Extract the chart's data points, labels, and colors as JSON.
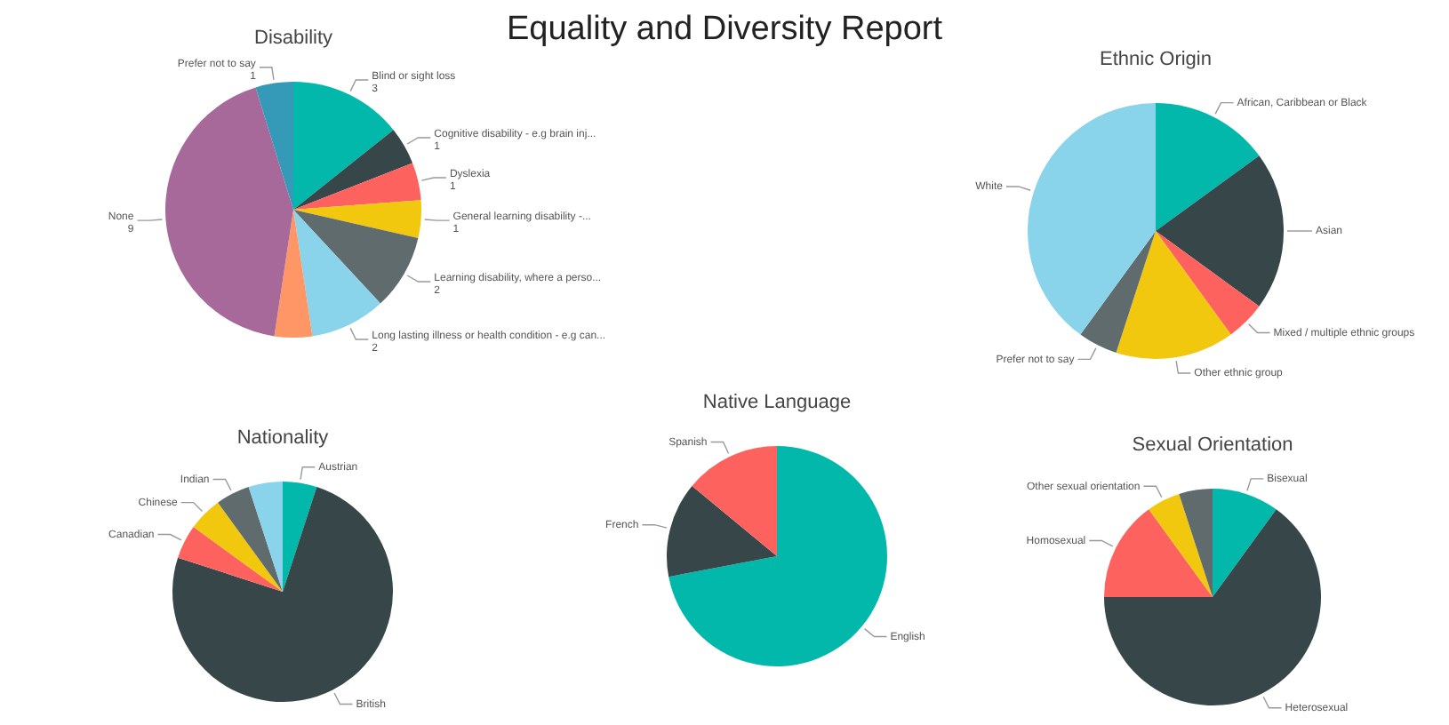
{
  "chart_data": [
    {
      "type": "other",
      "title": "Equality and Diversity Report"
    },
    {
      "type": "pie",
      "title": "Disability",
      "categories": [
        "Blind or sight loss",
        "Cognitive disability - e.g brain inj...",
        "Dyslexia",
        "General learning disability -...",
        "Learning disability, where a perso...",
        "Long lasting illness or health condition - e.g can...",
        null,
        "None",
        "Prefer not to say"
      ],
      "values": [
        3,
        1,
        1,
        1,
        2,
        2,
        1,
        9,
        1
      ],
      "value_labels": [
        "3",
        "1",
        "1",
        "1",
        "2",
        "2",
        null,
        "9",
        "1"
      ],
      "colors": [
        "#01b8aa",
        "#374649",
        "#fd625e",
        "#f2c80f",
        "#5f6b6d",
        "#8ad4eb",
        "#fe9666",
        "#a66999",
        "#3599b8"
      ]
    },
    {
      "type": "pie",
      "title": "Ethnic Origin",
      "categories": [
        "African, Caribbean or Black",
        "Asian",
        "Mixed / multiple ethnic groups",
        "Other ethnic group",
        "Prefer not to say",
        "White"
      ],
      "values": [
        15,
        20,
        5,
        15,
        5,
        40
      ],
      "colors": [
        "#01b8aa",
        "#374649",
        "#fd625e",
        "#f2c80f",
        "#5f6b6d",
        "#8ad4eb"
      ]
    },
    {
      "type": "pie",
      "title": "Nationality",
      "categories": [
        "Austrian",
        "British",
        "Canadian",
        "Chinese",
        "Indian",
        null
      ],
      "values": [
        5,
        75,
        5,
        5,
        5,
        5
      ],
      "colors": [
        "#01b8aa",
        "#374649",
        "#fd625e",
        "#f2c80f",
        "#5f6b6d",
        "#8ad4eb"
      ]
    },
    {
      "type": "pie",
      "title": "Native Language",
      "categories": [
        "English",
        "French",
        "Spanish"
      ],
      "values": [
        72,
        14,
        14
      ],
      "colors": [
        "#01b8aa",
        "#374649",
        "#fd625e"
      ]
    },
    {
      "type": "pie",
      "title": "Sexual Orientation",
      "categories": [
        "Bisexual",
        "Heterosexual",
        "Homosexual",
        "Other sexual orientation",
        null
      ],
      "values": [
        10,
        65,
        15,
        5,
        5
      ],
      "colors": [
        "#01b8aa",
        "#374649",
        "#fd625e",
        "#f2c80f",
        "#5f6b6d"
      ]
    }
  ]
}
